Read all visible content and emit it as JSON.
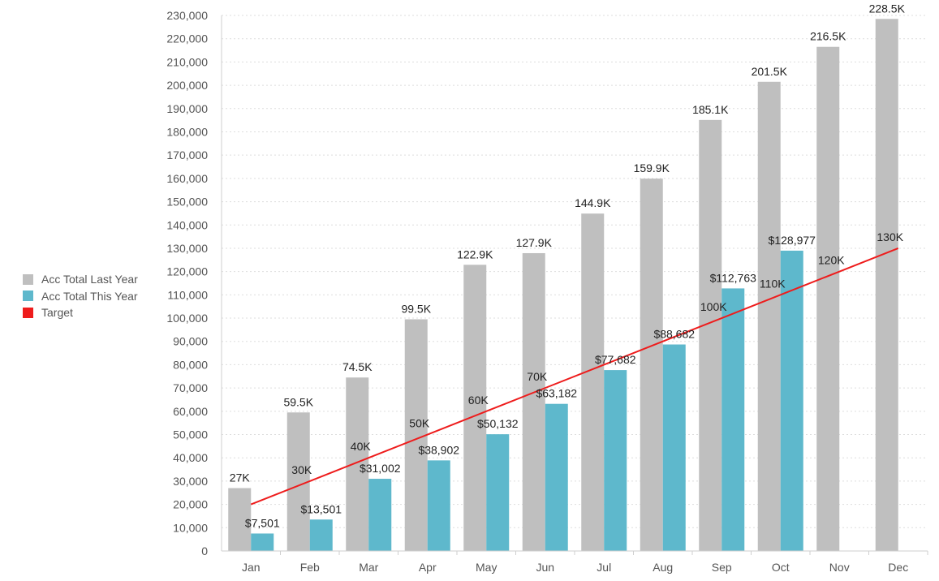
{
  "chart_data": {
    "type": "bar",
    "categories": [
      "Jan",
      "Feb",
      "Mar",
      "Apr",
      "May",
      "Jun",
      "Jul",
      "Aug",
      "Sep",
      "Oct",
      "Nov",
      "Dec"
    ],
    "ylim": [
      0,
      230000
    ],
    "yticks": [
      0,
      10000,
      20000,
      30000,
      40000,
      50000,
      60000,
      70000,
      80000,
      90000,
      100000,
      110000,
      120000,
      130000,
      140000,
      150000,
      160000,
      170000,
      180000,
      190000,
      200000,
      210000,
      220000,
      230000
    ],
    "ytick_labels": [
      "0",
      "10,000",
      "20,000",
      "30,000",
      "40,000",
      "50,000",
      "60,000",
      "70,000",
      "80,000",
      "90,000",
      "100,000",
      "110,000",
      "120,000",
      "130,000",
      "140,000",
      "150,000",
      "160,000",
      "170,000",
      "180,000",
      "190,000",
      "200,000",
      "210,000",
      "220,000",
      "230,000"
    ],
    "grid": true,
    "legend_position": "left",
    "series": [
      {
        "name": "Acc Total Last Year",
        "type": "bar",
        "color": "#bfbfbf",
        "values": [
          27000,
          59500,
          74500,
          99500,
          122900,
          127900,
          144900,
          159900,
          185100,
          201500,
          216500,
          228500
        ],
        "labels": [
          "27K",
          "59.5K",
          "74.5K",
          "99.5K",
          "122.9K",
          "127.9K",
          "144.9K",
          "159.9K",
          "185.1K",
          "201.5K",
          "216.5K",
          "228.5K"
        ]
      },
      {
        "name": "Acc Total This Year",
        "type": "bar",
        "color": "#5eb8cc",
        "values": [
          7501,
          13501,
          31002,
          38902,
          50132,
          63182,
          77682,
          88682,
          112763,
          128977,
          null,
          null
        ],
        "labels": [
          "$7,501",
          "$13,501",
          "$31,002",
          "$38,902",
          "$50,132",
          "$63,182",
          "$77,682",
          "$88,682",
          "$112,763",
          "$128,977",
          "",
          ""
        ]
      },
      {
        "name": "Target",
        "type": "line",
        "color": "#ee1c1c",
        "values": [
          20000,
          30000,
          40000,
          50000,
          60000,
          70000,
          80000,
          90000,
          100000,
          110000,
          120000,
          130000
        ],
        "labels": [
          "",
          "30K",
          "40K",
          "50K",
          "60K",
          "70K",
          "",
          "",
          "100K",
          "110K",
          "120K",
          "130K"
        ]
      }
    ]
  }
}
